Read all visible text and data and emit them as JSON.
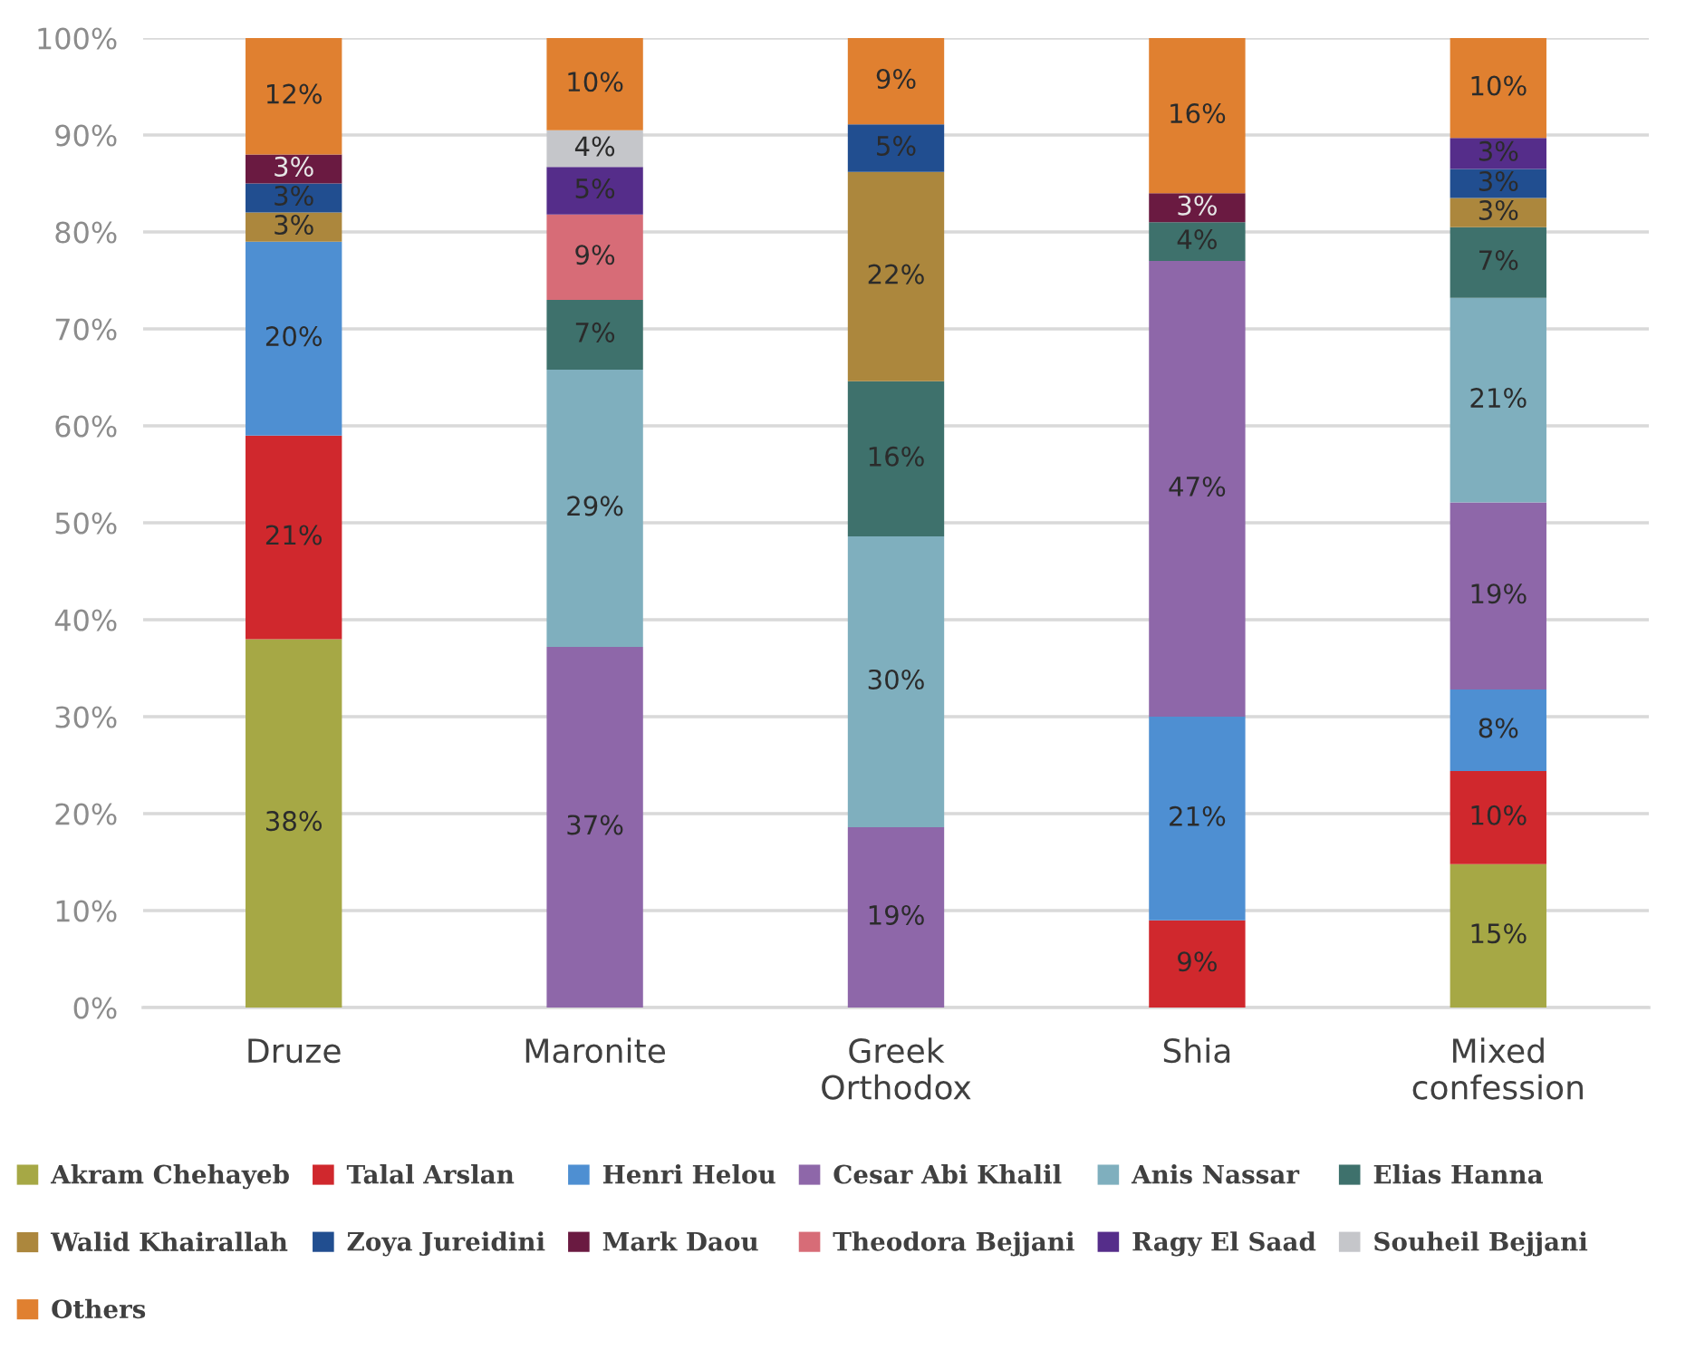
{
  "chart_data": {
    "type": "bar",
    "stacked": true,
    "categories": [
      "Druze",
      "Maronite",
      "Greek\nOrthodox",
      "Shia",
      "Mixed\nconfession"
    ],
    "series": [
      {
        "name": "Akram Chehayeb",
        "color": "#a6a845",
        "values": [
          38,
          null,
          null,
          null,
          14.8
        ],
        "value_labels": [
          "38%",
          null,
          null,
          null,
          "15%"
        ]
      },
      {
        "name": "Talal Arslan",
        "color": "#d0282d",
        "values": [
          21,
          null,
          null,
          9,
          9.6
        ],
        "value_labels": [
          "21%",
          null,
          null,
          "9%",
          "10%"
        ]
      },
      {
        "name": "Henri Helou",
        "color": "#4e8fd2",
        "values": [
          20,
          null,
          null,
          21,
          8.4
        ],
        "value_labels": [
          "20%",
          null,
          null,
          "21%",
          "8%"
        ]
      },
      {
        "name": "Cesar Abi Khalil",
        "color": "#8e67a9",
        "values": [
          null,
          37.2,
          18.6,
          47,
          19.3
        ],
        "value_labels": [
          null,
          "37%",
          "19%",
          "47%",
          "19%"
        ]
      },
      {
        "name": "Anis Nassar",
        "color": "#7fafbe",
        "values": [
          null,
          28.6,
          30.0,
          null,
          21.1
        ],
        "value_labels": [
          null,
          "29%",
          "30%",
          null,
          "21%"
        ]
      },
      {
        "name": "Elias Hanna",
        "color": "#3e716c",
        "values": [
          null,
          7.2,
          16.0,
          4,
          7.3
        ],
        "value_labels": [
          null,
          "7%",
          "16%",
          "4%",
          "7%"
        ]
      },
      {
        "name": "Walid Khairallah",
        "color": "#ac873d",
        "values": [
          3,
          null,
          21.6,
          null,
          3.0
        ],
        "value_labels": [
          "3%",
          null,
          "22%",
          null,
          "3%"
        ]
      },
      {
        "name": "Zoya Jureidini",
        "color": "#214e90",
        "values": [
          3,
          null,
          4.9,
          null,
          3.0
        ],
        "value_labels": [
          "3%",
          null,
          "5%",
          null,
          "3%"
        ]
      },
      {
        "name": "Mark Daou",
        "color": "#6a1a41",
        "values": [
          3,
          null,
          null,
          3,
          null
        ],
        "value_labels": [
          "3%",
          null,
          null,
          "3%",
          null
        ]
      },
      {
        "name": "Theodora Bejjani",
        "color": "#d76c77",
        "values": [
          null,
          8.8,
          null,
          null,
          null
        ],
        "value_labels": [
          null,
          "9%",
          null,
          null,
          null
        ]
      },
      {
        "name": "Ragy El Saad",
        "color": "#552d8a",
        "values": [
          null,
          4.9,
          null,
          null,
          3.2
        ],
        "value_labels": [
          null,
          "5%",
          null,
          null,
          "3%"
        ]
      },
      {
        "name": "Souheil Bejjani",
        "color": "#c5c6ca",
        "values": [
          null,
          3.8,
          null,
          null,
          null
        ],
        "value_labels": [
          null,
          "4%",
          null,
          null,
          null
        ]
      },
      {
        "name": "Others",
        "color": "#e08030",
        "values": [
          12,
          9.5,
          8.9,
          16,
          10.3
        ],
        "value_labels": [
          "12%",
          "10%",
          "9%",
          "16%",
          "10%"
        ]
      }
    ],
    "ylim": [
      0,
      100
    ],
    "yticks": [
      {
        "value": 0,
        "label": "0%"
      },
      {
        "value": 10,
        "label": "10%"
      },
      {
        "value": 20,
        "label": "20%"
      },
      {
        "value": 30,
        "label": "30%"
      },
      {
        "value": 40,
        "label": "40%"
      },
      {
        "value": 50,
        "label": "50%"
      },
      {
        "value": 60,
        "label": "60%"
      },
      {
        "value": 70,
        "label": "70%"
      },
      {
        "value": 80,
        "label": "80%"
      },
      {
        "value": 90,
        "label": "90%"
      },
      {
        "value": 100,
        "label": "100%"
      }
    ],
    "grid": "y",
    "legend": "bottom"
  }
}
